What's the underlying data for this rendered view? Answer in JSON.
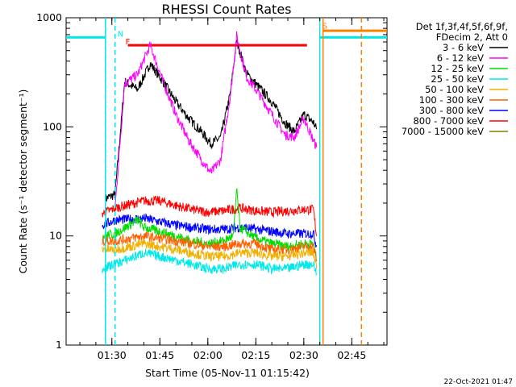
{
  "chart_data": {
    "type": "line",
    "title": "RHESSI Count Rates",
    "xlabel": "Start Time (05-Nov-11 01:15:42)",
    "ylabel": "Count Rate (s⁻¹ detector segment⁻¹)",
    "yscale": "log",
    "ylim": [
      1,
      1000
    ],
    "xlim": [
      "01:15:42",
      "02:56:00"
    ],
    "x_tick_labels": [
      "01:30",
      "01:45",
      "02:00",
      "02:15",
      "02:30",
      "02:45"
    ],
    "y_tick_labels": [
      "1",
      "10",
      "100",
      "1000"
    ],
    "legend": {
      "header": [
        "Det 1f,3f,4f,5f,6f,9f,",
        "FDecim 2, Att 0"
      ],
      "entries": [
        {
          "label": "3 - 6 keV",
          "color": "#000000"
        },
        {
          "label": "6 - 12 keV",
          "color": "#ff00ff"
        },
        {
          "label": "12 - 25 keV",
          "color": "#00dd00"
        },
        {
          "label": "25 - 50 keV",
          "color": "#00e8e8"
        },
        {
          "label": "50 - 100 keV",
          "color": "#f0b000"
        },
        {
          "label": "100 - 300 keV",
          "color": "#ff6000"
        },
        {
          "label": "300 - 800 keV",
          "color": "#0000ff"
        },
        {
          "label": "800 - 7000 keV",
          "color": "#ff0000"
        },
        {
          "label": "7000 - 15000 keV",
          "color": "#808000"
        }
      ]
    },
    "series": [
      {
        "color": "#000000",
        "x": [
          "01:28",
          "01:31",
          "01:34",
          "01:38",
          "01:42",
          "01:46",
          "01:50",
          "01:54",
          "01:58",
          "02:01",
          "02:04",
          "02:07",
          "02:09",
          "02:12",
          "02:16",
          "02:20",
          "02:24",
          "02:27",
          "02:30",
          "02:33",
          "02:34"
        ],
        "y": [
          22,
          24,
          260,
          220,
          380,
          260,
          170,
          120,
          90,
          70,
          80,
          200,
          620,
          310,
          230,
          170,
          110,
          90,
          130,
          110,
          95
        ]
      },
      {
        "color": "#ff00ff",
        "x": [
          "01:31",
          "01:34",
          "01:38",
          "01:42",
          "01:46",
          "01:50",
          "01:54",
          "01:58",
          "02:01",
          "02:04",
          "02:07",
          "02:09",
          "02:12",
          "02:16",
          "02:20",
          "02:24",
          "02:27",
          "02:30",
          "02:33",
          "02:34"
        ],
        "y": [
          18,
          250,
          300,
          560,
          260,
          130,
          75,
          50,
          38,
          50,
          190,
          680,
          290,
          200,
          130,
          85,
          80,
          120,
          75,
          65
        ]
      },
      {
        "color": "#ff0000",
        "x": [
          "01:27",
          "01:31",
          "01:40",
          "01:45",
          "01:50",
          "01:55",
          "02:00",
          "02:05",
          "02:10",
          "02:15",
          "02:20",
          "02:25",
          "02:30",
          "02:33",
          "02:34"
        ],
        "y": [
          16,
          18,
          21,
          21,
          19,
          17.5,
          16.5,
          17,
          18,
          17,
          16.5,
          17,
          17.5,
          17.5,
          10
        ]
      },
      {
        "color": "#0000ff",
        "x": [
          "01:27",
          "01:31",
          "01:40",
          "01:45",
          "01:50",
          "01:55",
          "02:00",
          "02:05",
          "02:10",
          "02:15",
          "02:20",
          "02:25",
          "02:30",
          "02:33",
          "02:34"
        ],
        "y": [
          12.5,
          14,
          14.5,
          13.5,
          12.5,
          12,
          11.5,
          11.5,
          12,
          11.5,
          11,
          10.5,
          10.5,
          10.5,
          8
        ]
      },
      {
        "color": "#00dd00",
        "x": [
          "01:27",
          "01:31",
          "01:38",
          "01:40",
          "01:45",
          "01:50",
          "01:55",
          "02:00",
          "02:05",
          "02:08",
          "02:09",
          "02:10",
          "02:15",
          "02:20",
          "02:25",
          "02:30",
          "02:33",
          "02:34"
        ],
        "y": [
          10,
          10.5,
          14,
          12,
          11,
          10,
          9,
          8.5,
          9,
          10,
          27,
          12,
          9.5,
          8.5,
          8,
          8.5,
          8.5,
          6
        ]
      },
      {
        "color": "#ff6000",
        "x": [
          "01:27",
          "01:31",
          "01:40",
          "01:45",
          "01:50",
          "01:55",
          "02:00",
          "02:05",
          "02:10",
          "02:15",
          "02:20",
          "02:25",
          "02:30",
          "02:33",
          "02:34"
        ],
        "y": [
          9,
          9,
          10,
          9.5,
          9,
          8.5,
          8,
          8,
          8.5,
          8.5,
          7.5,
          7.5,
          8,
          8,
          6
        ]
      },
      {
        "color": "#f0b000",
        "x": [
          "01:27",
          "01:31",
          "01:40",
          "01:45",
          "01:50",
          "01:55",
          "02:00",
          "02:05",
          "02:10",
          "02:15",
          "02:20",
          "02:25",
          "02:30",
          "02:33",
          "02:34"
        ],
        "y": [
          7.5,
          7.5,
          8.5,
          8,
          7.5,
          7,
          6.5,
          6.5,
          7,
          7,
          6.5,
          6.5,
          7,
          7,
          5
        ]
      },
      {
        "color": "#00e8e8",
        "x": [
          "01:27",
          "01:31",
          "01:40",
          "01:45",
          "01:50",
          "01:55",
          "02:00",
          "02:05",
          "02:10",
          "02:15",
          "02:20",
          "02:25",
          "02:30",
          "02:33",
          "02:34"
        ],
        "y": [
          5,
          5.5,
          7,
          6.5,
          6,
          5.5,
          5,
          5,
          5.5,
          5.5,
          5,
          5,
          5.5,
          5.5,
          4.5
        ]
      }
    ],
    "segments": [
      {
        "color": "#00e8e8",
        "x": [
          "01:15:42",
          "01:28"
        ],
        "y": 660
      },
      {
        "color": "#ff0000",
        "x": [
          "01:35",
          "02:31"
        ],
        "y": 560
      },
      {
        "color": "#ff8000",
        "x": [
          "02:36",
          "02:56"
        ],
        "y": 760
      },
      {
        "color": "#00e8e8",
        "x": [
          "02:35",
          "02:56"
        ],
        "y": 660
      }
    ],
    "markers": [
      {
        "label": "N",
        "x": "01:31",
        "y": 660,
        "color": "#00e8e8"
      },
      {
        "label": "F",
        "x": "01:33:30",
        "y": 560,
        "color": "#ff0000"
      },
      {
        "label": "S",
        "x": "02:35",
        "y": 780,
        "color": "#ff8000"
      }
    ],
    "vlines": [
      {
        "x": "01:28",
        "color": "#00e8e8",
        "dashed": false
      },
      {
        "x": "01:31",
        "color": "#00e8e8",
        "dashed": true
      },
      {
        "x": "02:35",
        "color": "#00e8e8",
        "dashed": false
      },
      {
        "x": "02:36",
        "color": "#ff8000",
        "dashed": false
      },
      {
        "x": "02:48",
        "color": "#00e8e8",
        "dashed": true
      },
      {
        "x": "02:48",
        "color": "#ff8000",
        "dashed": true
      }
    ],
    "footer": "22-Oct-2021 01:47"
  }
}
